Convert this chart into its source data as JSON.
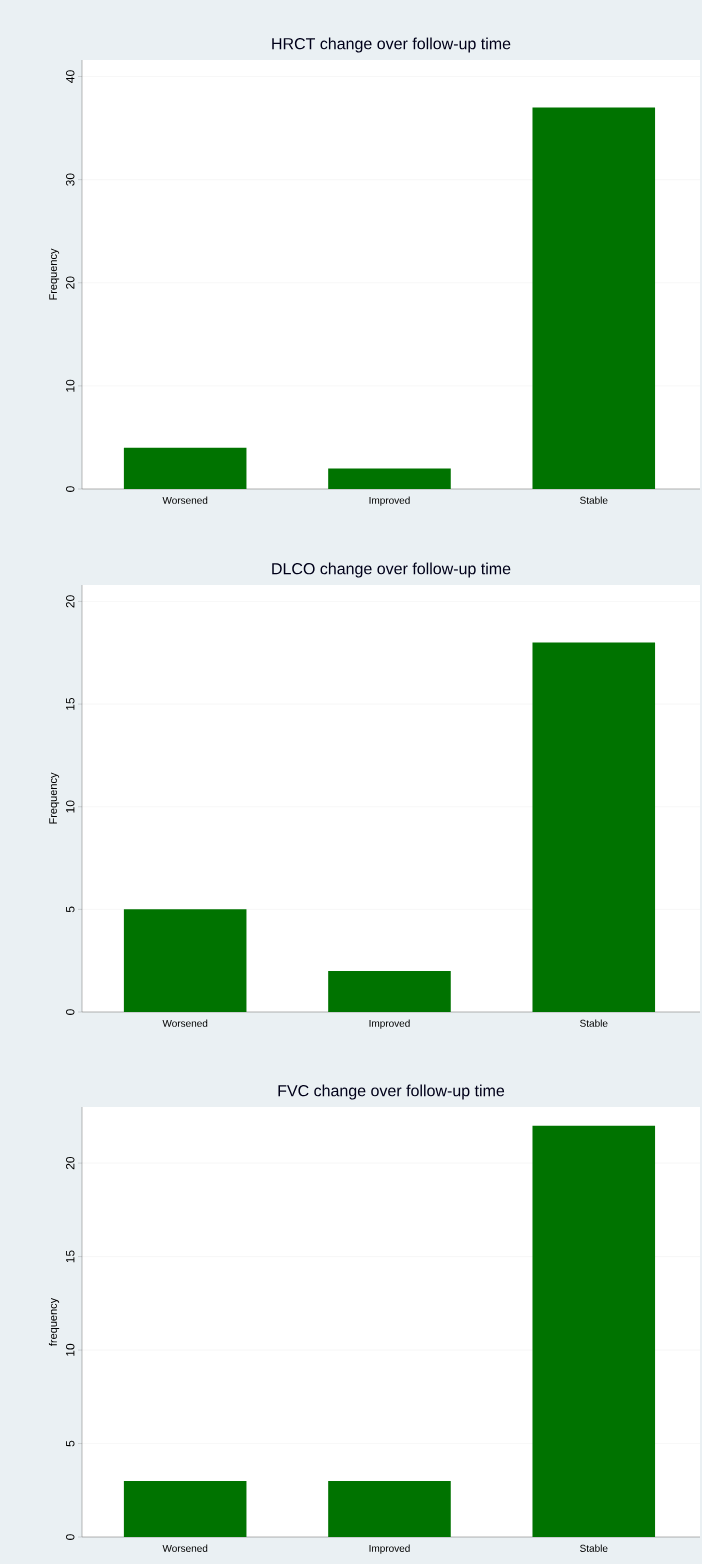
{
  "chart_data": [
    {
      "type": "bar",
      "title": "HRCT change over follow-up time",
      "ylabel": "Frequency",
      "categories": [
        "Worsened",
        "Improved",
        "Stable"
      ],
      "values": [
        4,
        2,
        37
      ],
      "color": "#007300",
      "ylim": [
        0,
        41.6
      ],
      "yticks": [
        0,
        10,
        20,
        30,
        40
      ],
      "grid": "y"
    },
    {
      "type": "bar",
      "title": "DLCO change over follow-up time",
      "ylabel": "Frequency",
      "categories": [
        "Worsened",
        "Improved",
        "Stable"
      ],
      "values": [
        5,
        2,
        18
      ],
      "color": "#007300",
      "ylim": [
        0,
        20.8
      ],
      "yticks": [
        0,
        5,
        10,
        15,
        20
      ],
      "grid": "y"
    },
    {
      "type": "bar",
      "title": "FVC change over follow-up time",
      "ylabel": "frequency",
      "categories": [
        "Worsened",
        "Improved",
        "Stable"
      ],
      "values": [
        3,
        3,
        22
      ],
      "color": "#007300",
      "ylim": [
        0,
        23
      ],
      "yticks": [
        0,
        5,
        10,
        15,
        20
      ],
      "grid": "y"
    }
  ]
}
